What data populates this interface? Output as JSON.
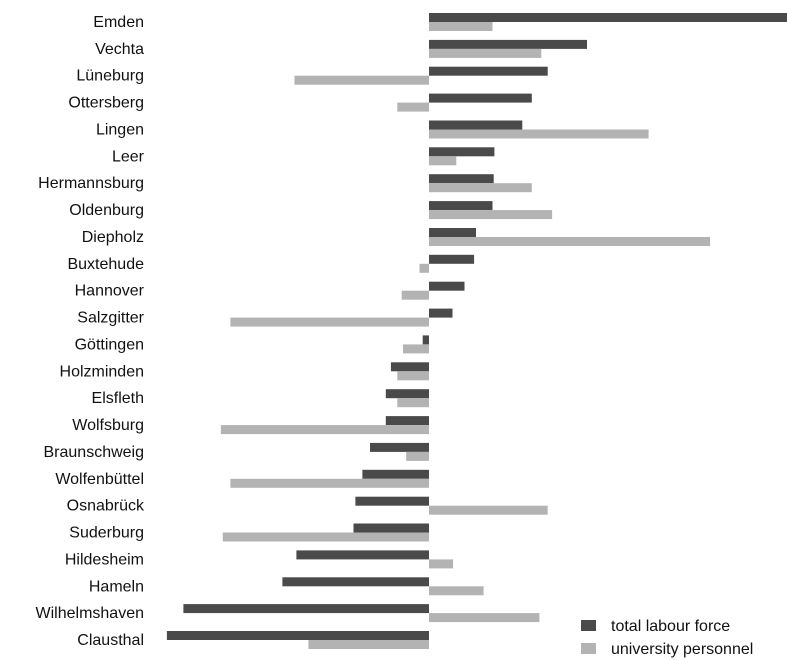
{
  "chart_data": {
    "type": "bar",
    "orientation": "horizontal",
    "title": "",
    "xlabel": "",
    "ylabel": "",
    "xlim": [
      -41.5,
      58
    ],
    "grid": false,
    "categories": [
      "Emden",
      "Vechta",
      "Lüneburg",
      "Ottersberg",
      "Lingen",
      "Leer",
      "Hermannsburg",
      "Oldenburg",
      "Diepholz",
      "Buxtehude",
      "Hannover",
      "Salzgitter",
      "Göttingen",
      "Holzminden",
      "Elsfleth",
      "Wolfsburg",
      "Braunschweig",
      "Wolfenbüttel",
      "Osnabrück",
      "Suderburg",
      "Hildesheim",
      "Hameln",
      "Wilhelmshaven",
      "Clausthal"
    ],
    "series": [
      {
        "name": "total labour force",
        "color": "#4a4a4a",
        "values": [
          56.7,
          24.9,
          18.7,
          16.2,
          14.7,
          10.3,
          10.2,
          10.0,
          7.4,
          7.1,
          5.6,
          3.7,
          -1.0,
          -6.0,
          -6.8,
          -6.8,
          -9.3,
          -10.5,
          -11.6,
          -11.9,
          -20.9,
          -23.1,
          -38.7,
          -41.3
        ]
      },
      {
        "name": "university personnel",
        "color": "#b3b3b3",
        "values": [
          10.0,
          17.7,
          -21.2,
          -5.0,
          34.6,
          4.3,
          16.2,
          19.4,
          44.3,
          -1.5,
          -4.3,
          -31.3,
          -4.1,
          -5.0,
          -5.0,
          -32.8,
          -3.6,
          -31.3,
          18.7,
          -32.5,
          3.8,
          8.6,
          17.4,
          -19.0
        ]
      }
    ],
    "legend_position": "bottom-right"
  }
}
